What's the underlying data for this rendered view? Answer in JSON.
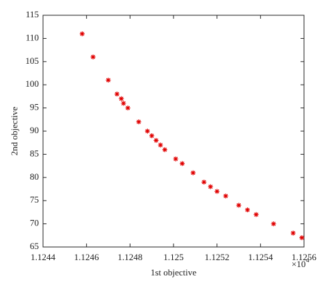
{
  "chart_data": {
    "type": "scatter",
    "x_label": "1st objective",
    "y_label": "2nd objective",
    "x_scale_label": "×10",
    "x_scale_exponent": "4",
    "marker_color": "#e00000",
    "x": [
      1.12458,
      1.12463,
      1.1247,
      1.12474,
      1.12476,
      1.12477,
      1.12479,
      1.12484,
      1.12488,
      1.1249,
      1.12492,
      1.12494,
      1.12496,
      1.12501,
      1.12504,
      1.12509,
      1.12514,
      1.12517,
      1.1252,
      1.12524,
      1.1253,
      1.12534,
      1.12538,
      1.12546,
      1.12555,
      1.12559
    ],
    "y": [
      111,
      106,
      101,
      98,
      97,
      96,
      95,
      92,
      90,
      89,
      88,
      87,
      86,
      84,
      83,
      81,
      79,
      78,
      77,
      76,
      74,
      73,
      72,
      70,
      68,
      67
    ],
    "xlim": [
      1.1244,
      1.1256
    ],
    "xticks": [
      1.1244,
      1.1246,
      1.1248,
      1.125,
      1.1252,
      1.1254,
      1.1256
    ],
    "ylim": [
      65,
      115
    ],
    "yticks": [
      65,
      70,
      75,
      80,
      85,
      90,
      95,
      100,
      105,
      110,
      115
    ]
  }
}
